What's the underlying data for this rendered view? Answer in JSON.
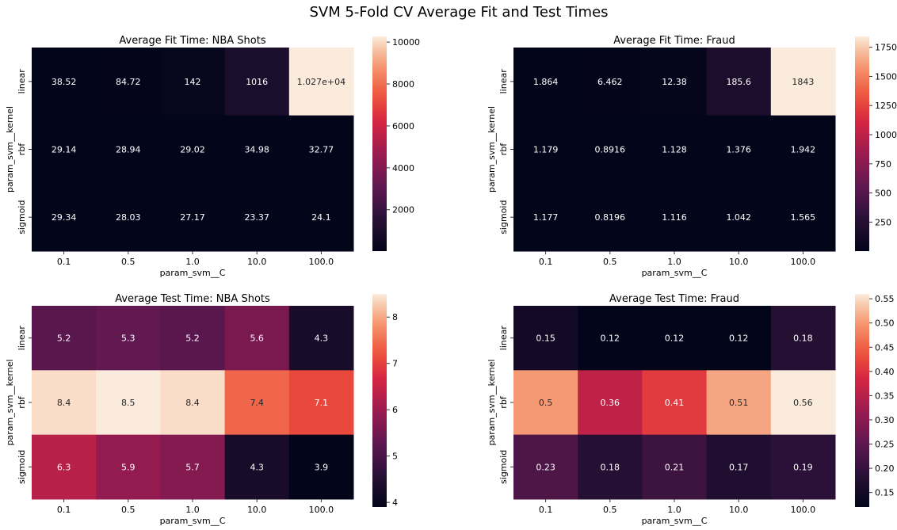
{
  "suptitle": "SVM 5-Fold CV Average Fit and Test Times",
  "chart_data": [
    {
      "type": "heatmap",
      "title": "Average Fit Time: NBA Shots",
      "xlabel": "param_svm__C",
      "ylabel": "param_svm__kernel",
      "x_categories": [
        "0.1",
        "0.5",
        "1.0",
        "10.0",
        "100.0"
      ],
      "y_categories": [
        "linear",
        "rbf",
        "sigmoid"
      ],
      "values": [
        [
          38.52,
          84.72,
          142,
          1016,
          10270
        ],
        [
          29.14,
          28.94,
          29.02,
          34.98,
          32.77
        ],
        [
          29.34,
          28.03,
          27.17,
          23.37,
          24.1
        ]
      ],
      "annotations": [
        [
          "38.52",
          "84.72",
          "142",
          "1016",
          "1.027e+04"
        ],
        [
          "29.14",
          "28.94",
          "29.02",
          "34.98",
          "32.77"
        ],
        [
          "29.34",
          "28.03",
          "27.17",
          "23.37",
          "24.1"
        ]
      ],
      "colorbar_range": [
        23.37,
        10270
      ],
      "colorbar_ticks": [
        "2000",
        "4000",
        "6000",
        "8000",
        "10000"
      ],
      "colorbar_tick_values": [
        2000,
        4000,
        6000,
        8000,
        10000
      ],
      "colormap": "rocket"
    },
    {
      "type": "heatmap",
      "title": "Average Fit Time: Fraud",
      "xlabel": "param_svm__C",
      "ylabel": "param_svm__kernel",
      "x_categories": [
        "0.1",
        "0.5",
        "1.0",
        "10.0",
        "100.0"
      ],
      "y_categories": [
        "linear",
        "rbf",
        "sigmoid"
      ],
      "values": [
        [
          1.864,
          6.462,
          12.38,
          185.6,
          1843
        ],
        [
          1.179,
          0.8916,
          1.128,
          1.376,
          1.942
        ],
        [
          1.177,
          0.8196,
          1.116,
          1.042,
          1.565
        ]
      ],
      "annotations": [
        [
          "1.864",
          "6.462",
          "12.38",
          "185.6",
          "1843"
        ],
        [
          "1.179",
          "0.8916",
          "1.128",
          "1.376",
          "1.942"
        ],
        [
          "1.177",
          "0.8196",
          "1.116",
          "1.042",
          "1.565"
        ]
      ],
      "colorbar_range": [
        0.8196,
        1843
      ],
      "colorbar_ticks": [
        "250",
        "500",
        "750",
        "1000",
        "1250",
        "1500",
        "1750"
      ],
      "colorbar_tick_values": [
        250,
        500,
        750,
        1000,
        1250,
        1500,
        1750
      ],
      "colormap": "rocket"
    },
    {
      "type": "heatmap",
      "title": "Average Test Time: NBA Shots",
      "xlabel": "param_svm__C",
      "ylabel": "param_svm__kernel",
      "x_categories": [
        "0.1",
        "0.5",
        "1.0",
        "10.0",
        "100.0"
      ],
      "y_categories": [
        "linear",
        "rbf",
        "sigmoid"
      ],
      "values": [
        [
          5.2,
          5.3,
          5.2,
          5.6,
          4.3
        ],
        [
          8.4,
          8.5,
          8.4,
          7.4,
          7.1
        ],
        [
          6.3,
          5.9,
          5.7,
          4.3,
          3.9
        ]
      ],
      "annotations": [
        [
          "5.2",
          "5.3",
          "5.2",
          "5.6",
          "4.3"
        ],
        [
          "8.4",
          "8.5",
          "8.4",
          "7.4",
          "7.1"
        ],
        [
          "6.3",
          "5.9",
          "5.7",
          "4.3",
          "3.9"
        ]
      ],
      "colorbar_range": [
        3.9,
        8.5
      ],
      "colorbar_ticks": [
        "4",
        "5",
        "6",
        "7",
        "8"
      ],
      "colorbar_tick_values": [
        4,
        5,
        6,
        7,
        8
      ],
      "colormap": "rocket"
    },
    {
      "type": "heatmap",
      "title": "Average Test Time: Fraud",
      "xlabel": "param_svm__C",
      "ylabel": "param_svm__kernel",
      "x_categories": [
        "0.1",
        "0.5",
        "1.0",
        "10.0",
        "100.0"
      ],
      "y_categories": [
        "linear",
        "rbf",
        "sigmoid"
      ],
      "values": [
        [
          0.15,
          0.12,
          0.12,
          0.12,
          0.18
        ],
        [
          0.5,
          0.36,
          0.41,
          0.51,
          0.56
        ],
        [
          0.23,
          0.18,
          0.21,
          0.17,
          0.19
        ]
      ],
      "annotations": [
        [
          "0.15",
          "0.12",
          "0.12",
          "0.12",
          "0.18"
        ],
        [
          "0.5",
          "0.36",
          "0.41",
          "0.51",
          "0.56"
        ],
        [
          "0.23",
          "0.18",
          "0.21",
          "0.17",
          "0.19"
        ]
      ],
      "colorbar_range": [
        0.12,
        0.56
      ],
      "colorbar_ticks": [
        "0.15",
        "0.20",
        "0.25",
        "0.30",
        "0.35",
        "0.40",
        "0.45",
        "0.50",
        "0.55"
      ],
      "colorbar_tick_values": [
        0.15,
        0.2,
        0.25,
        0.3,
        0.35,
        0.4,
        0.45,
        0.5,
        0.55
      ],
      "colormap": "rocket"
    }
  ]
}
